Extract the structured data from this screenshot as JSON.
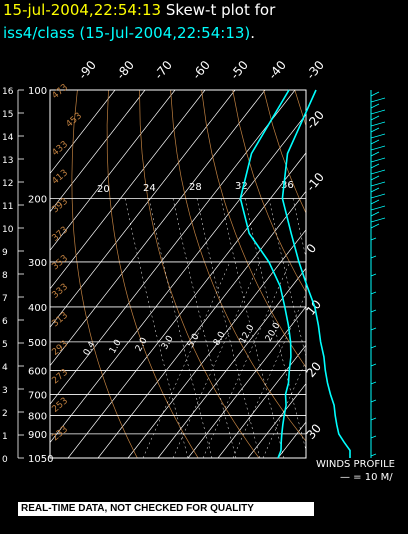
{
  "header": {
    "title_date": "15-jul-2004,22:54:13",
    "title_text": "Skew-t plot for",
    "subtitle_source": "iss4/class (15-Jul-2004,22:54:13)",
    "subtitle_period": "."
  },
  "footer": {
    "winds_label": "WINDS PROFILE",
    "winds_scale": "— = 10 M/",
    "disclaimer": "REAL-TIME DATA, NOT CHECKED FOR QUALITY"
  },
  "colors": {
    "background": "#000000",
    "grid": "#ffffff",
    "adiabat": "#c08040",
    "sounding": "#00ffff",
    "title_date": "#ffff00",
    "title_source": "#00ffff"
  },
  "chart_data": {
    "type": "skew-t",
    "pressure_levels": [
      100,
      200,
      300,
      400,
      500,
      600,
      700,
      800,
      900,
      1050
    ],
    "height_km_ticks": [
      "0",
      "1",
      "2",
      "3",
      "4",
      "5",
      "6",
      "7",
      "8",
      "9",
      "10",
      "11",
      "12",
      "13",
      "14",
      "15",
      "16"
    ],
    "top_temp_labels": [
      "-90",
      "-80",
      "-70",
      "-60",
      "-50",
      "-40",
      "-30"
    ],
    "right_temp_labels": [
      "-20",
      "-10",
      "0",
      "10",
      "20",
      "30"
    ],
    "dry_adiabat_labels": [
      "473",
      "453",
      "433",
      "413",
      "393",
      "373",
      "353",
      "333",
      "313",
      "293",
      "273",
      "253",
      "233"
    ],
    "mixing_ratio_labels": [
      "20",
      "24",
      "28",
      "32",
      "36"
    ],
    "moist_labels": [
      "0.4",
      "1.0",
      "2.0",
      "3.0",
      "5.0",
      "8.0",
      "12.0",
      "20.0"
    ],
    "ylim": [
      1050,
      100
    ],
    "xlim_temp_c": [
      -40,
      40
    ],
    "series": [
      {
        "name": "",
        "style": "temperature",
        "points": [
          [
            100,
            -73
          ],
          [
            150,
            -66
          ],
          [
            200,
            -56
          ],
          [
            250,
            -44
          ],
          [
            300,
            -34
          ],
          [
            350,
            -25
          ],
          [
            400,
            -17
          ],
          [
            450,
            -11
          ],
          [
            500,
            -6
          ],
          [
            550,
            -1
          ],
          [
            600,
            3
          ],
          [
            650,
            7
          ],
          [
            700,
            11
          ],
          [
            750,
            15
          ],
          [
            800,
            18
          ],
          [
            850,
            21
          ],
          [
            900,
            24
          ],
          [
            950,
            28
          ],
          [
            1000,
            32
          ],
          [
            1050,
            34
          ]
        ]
      },
      {
        "name": "",
        "style": "dewpoint",
        "points": [
          [
            100,
            -82
          ],
          [
            150,
            -78
          ],
          [
            200,
            -70
          ],
          [
            250,
            -58
          ],
          [
            300,
            -44
          ],
          [
            350,
            -34
          ],
          [
            400,
            -27
          ],
          [
            450,
            -21
          ],
          [
            500,
            -16
          ],
          [
            550,
            -12
          ],
          [
            600,
            -9
          ],
          [
            650,
            -6
          ],
          [
            700,
            -4
          ],
          [
            750,
            -1
          ],
          [
            800,
            1
          ],
          [
            850,
            3
          ],
          [
            900,
            5
          ],
          [
            950,
            7
          ],
          [
            1000,
            9
          ],
          [
            1050,
            10
          ]
        ]
      }
    ]
  }
}
